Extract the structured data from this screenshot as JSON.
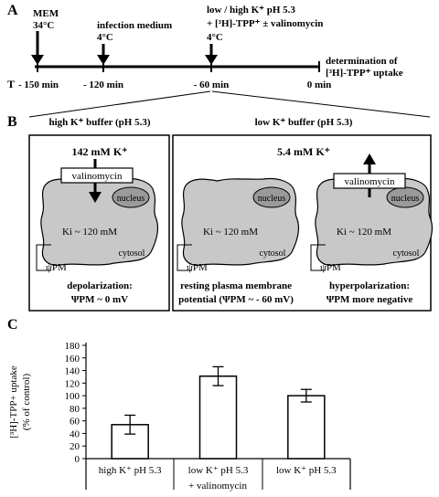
{
  "panel_a": {
    "label": "A",
    "t_label": "T",
    "events": [
      {
        "line1": "MEM",
        "line2": "34°C"
      },
      {
        "line1": "infection medium",
        "line2": "4°C"
      },
      {
        "line1": "low / high K⁺ pH 5.3",
        "line2": "+ [³H]-TPP⁺ ± valinomycin",
        "line3": "4°C"
      }
    ],
    "end_label_1": "determination of",
    "end_label_2": "[³H]-TPP⁺ uptake",
    "times": [
      "- 150 min",
      "- 120 min",
      "- 60 min",
      "0 min"
    ]
  },
  "panel_b": {
    "label": "B",
    "left_header": "high K⁺ buffer (pH 5.3)",
    "right_header": "low K⁺ buffer (pH 5.3)",
    "high_conc": "142 mM K⁺",
    "low_conc": "5.4 mM K⁺",
    "valinomycin": "valinomycin",
    "nucleus": "nucleus",
    "ki": "Ki ~ 120 mM",
    "cytosol": "cytosol",
    "psi_pm": "ψPM",
    "captions": [
      {
        "line1": "depolarization:",
        "line2": "ΨPM ~ 0 mV"
      },
      {
        "line1": "resting plasma membrane",
        "line2": "potential (ΨPM ~ - 60 mV)"
      },
      {
        "line1": "hyperpolarization:",
        "line2": "ΨPM more negative"
      }
    ]
  },
  "panel_c": {
    "label": "C",
    "footer": "+ valinomycin"
  },
  "chart_data": {
    "type": "bar",
    "categories": [
      "high K⁺ pH 5.3",
      "low K⁺ pH 5.3",
      "low K⁺ pH 5.3"
    ],
    "values": [
      54,
      131,
      100
    ],
    "errors": [
      15,
      15,
      10
    ],
    "ylabel_line1": "[³H]-TPP+ uptake",
    "ylabel_line2": "(% of control)",
    "ylim": [
      0,
      180
    ],
    "yticks": [
      "0",
      "20",
      "40",
      "60",
      "80",
      "100",
      "120",
      "140",
      "160",
      "180"
    ],
    "grid": false,
    "bar_color": "#ffffff"
  }
}
